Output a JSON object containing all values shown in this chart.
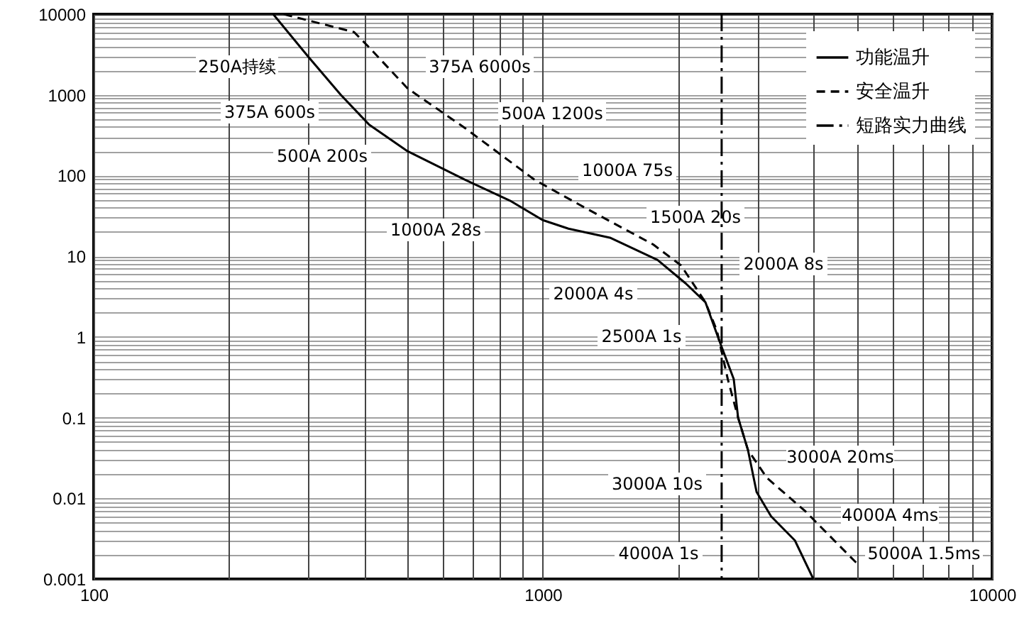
{
  "chart_data": {
    "type": "line",
    "log": "xy",
    "grid": true,
    "legend": "top right",
    "xlim": [
      100,
      10000
    ],
    "ylim": [
      0.001,
      10000
    ],
    "xticks": [
      100,
      {
        "value": 200,
        "label": null
      },
      {
        "value": 300,
        "label": null
      },
      {
        "value": 400,
        "label": null
      },
      {
        "value": 500,
        "label": null
      },
      {
        "value": 600,
        "label": null
      },
      {
        "value": 700,
        "label": null
      },
      {
        "value": 800,
        "label": null
      },
      {
        "value": 900,
        "label": null
      },
      1000,
      {
        "value": 2000,
        "label": null
      },
      {
        "value": 3000,
        "label": null
      },
      {
        "value": 4000,
        "label": null
      },
      {
        "value": 5000,
        "label": null
      },
      {
        "value": 6000,
        "label": null
      },
      {
        "value": 7000,
        "label": null
      },
      {
        "value": 8000,
        "label": null
      },
      {
        "value": 9000,
        "label": null
      },
      10000
    ],
    "yticks": [
      0.001,
      {
        "value": 0.002,
        "label": null
      },
      {
        "value": 0.003,
        "label": null
      },
      {
        "value": 0.004,
        "label": null
      },
      {
        "value": 0.005,
        "label": null
      },
      {
        "value": 0.006,
        "label": null
      },
      {
        "value": 0.007,
        "label": null
      },
      {
        "value": 0.008,
        "label": null
      },
      {
        "value": 0.009,
        "label": null
      },
      0.01,
      {
        "value": 0.02,
        "label": null
      },
      {
        "value": 0.03,
        "label": null
      },
      {
        "value": 0.04,
        "label": null
      },
      {
        "value": 0.05,
        "label": null
      },
      {
        "value": 0.06,
        "label": null
      },
      {
        "value": 0.07,
        "label": null
      },
      {
        "value": 0.08,
        "label": null
      },
      {
        "value": 0.09,
        "label": null
      },
      0.1,
      {
        "value": 0.2,
        "label": null
      },
      {
        "value": 0.3,
        "label": null
      },
      {
        "value": 0.4,
        "label": null
      },
      {
        "value": 0.5,
        "label": null
      },
      {
        "value": 0.6,
        "label": null
      },
      {
        "value": 0.7,
        "label": null
      },
      {
        "value": 0.8,
        "label": null
      },
      {
        "value": 0.9,
        "label": null
      },
      1,
      {
        "value": 2,
        "label": null
      },
      {
        "value": 3,
        "label": null
      },
      {
        "value": 4,
        "label": null
      },
      {
        "value": 5,
        "label": null
      },
      {
        "value": 6,
        "label": null
      },
      {
        "value": 7,
        "label": null
      },
      {
        "value": 8,
        "label": null
      },
      {
        "value": 9,
        "label": null
      },
      10,
      {
        "value": 20,
        "label": null
      },
      {
        "value": 30,
        "label": null
      },
      {
        "value": 40,
        "label": null
      },
      {
        "value": 50,
        "label": null
      },
      {
        "value": 60,
        "label": null
      },
      {
        "value": 70,
        "label": null
      },
      {
        "value": 80,
        "label": null
      },
      {
        "value": 90,
        "label": null
      },
      100,
      {
        "value": 200,
        "label": null
      },
      {
        "value": 300,
        "label": null
      },
      {
        "value": 400,
        "label": null
      },
      {
        "value": 500,
        "label": null
      },
      {
        "value": 600,
        "label": null
      },
      {
        "value": 700,
        "label": null
      },
      {
        "value": 800,
        "label": null
      },
      {
        "value": 900,
        "label": null
      },
      1000,
      {
        "value": 2000,
        "label": null
      },
      {
        "value": 3000,
        "label": null
      },
      {
        "value": 4000,
        "label": null
      },
      {
        "value": 5000,
        "label": null
      },
      {
        "value": 6000,
        "label": null
      },
      {
        "value": 7000,
        "label": null
      },
      {
        "value": 8000,
        "label": null
      },
      {
        "value": 9000,
        "label": null
      },
      10000
    ],
    "series": [
      {
        "name": "功能温升",
        "color": "#000000",
        "line_style": "solid",
        "x": [
          251,
          300,
          355,
          410,
          500,
          670,
          850,
          1000,
          1140,
          1410,
          1800,
          2080,
          2300,
          2470,
          2660,
          2720,
          2860,
          2990,
          3220,
          3640,
          4000
        ],
        "values": [
          10000,
          3000,
          1000,
          430,
          200,
          89,
          48,
          28,
          22,
          17,
          9,
          4.6,
          2.7,
          0.9,
          0.3,
          0.1,
          0.04,
          0.012,
          0.006,
          0.003,
          0.001
        ]
      },
      {
        "name": "安全温升",
        "color": "#000000",
        "line_style": "dashed",
        "x": [
          265,
          380,
          410,
          500,
          670,
          960,
          1250,
          1760,
          2030,
          2300,
          2440,
          2580,
          2720,
          2860,
          3150,
          3830,
          4980
        ],
        "values": [
          10000,
          6000,
          3900,
          1200,
          390,
          88,
          39,
          14,
          7.7,
          2.7,
          1.2,
          0.3,
          0.1,
          0.04,
          0.018,
          0.007,
          0.0016
        ]
      },
      {
        "name": "短路实力曲线",
        "color": "#000000",
        "line_style": "dashdot",
        "x": [
          2500,
          2500
        ],
        "values": [
          10000,
          0.001
        ]
      }
    ],
    "annotations": [
      "250A持续",
      "375A 600s",
      "500A 200s",
      "1000A 28s",
      "375A 6000s",
      "500A 1200s",
      "1000A 75s",
      "1500A 20s",
      "2000A 8s",
      "2000A 4s",
      "2500A 1s",
      "3000A 20ms",
      "3000A 10s",
      "4000A 4ms",
      "4000A 1s",
      "5000A 1.5ms"
    ]
  }
}
